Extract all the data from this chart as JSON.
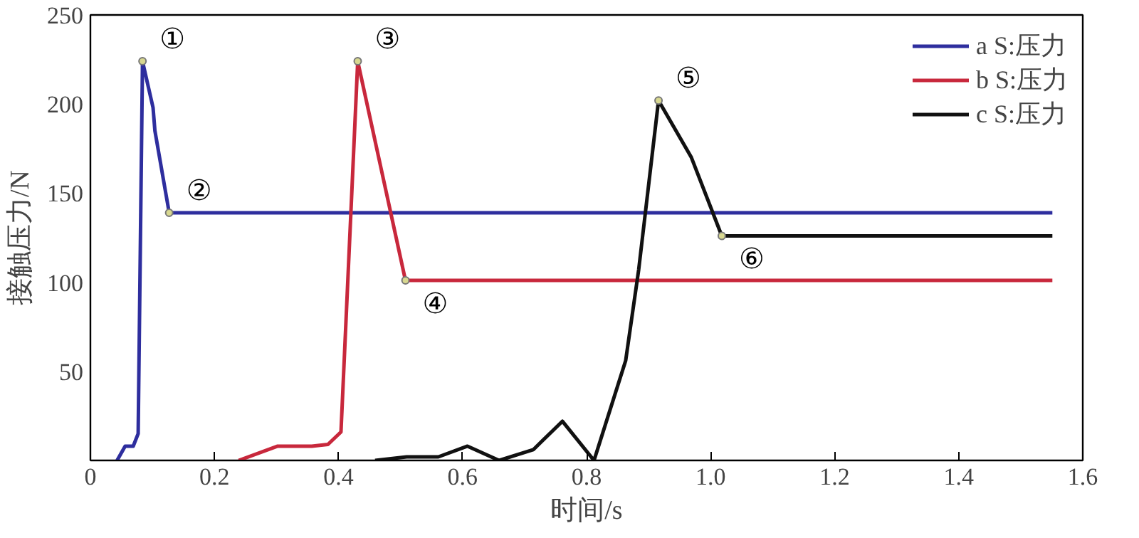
{
  "chart_data": {
    "type": "line",
    "xlabel": "时间/s",
    "ylabel": "接触压力/N",
    "xlim": [
      0,
      1.6
    ],
    "ylim": [
      0,
      250
    ],
    "xticks": [
      0,
      {
        "value": 0.2,
        "label": "0.2"
      },
      {
        "value": 0.4,
        "label": "0.4"
      },
      {
        "value": 0.6,
        "label": "0.6"
      },
      {
        "value": 0.8,
        "label": "0.8"
      },
      {
        "value": 1.0,
        "label": "1.0"
      },
      {
        "value": 1.2,
        "label": "1.2"
      },
      {
        "value": 1.4,
        "label": "1.4"
      },
      {
        "value": 1.6,
        "label": "1.6"
      }
    ],
    "yticks": [
      50,
      100,
      150,
      200,
      250
    ],
    "grid": false,
    "legend": "top right",
    "marker": "none",
    "line_style": "solid",
    "series": [
      {
        "name": "a S:压力",
        "color": "#2e2e9e",
        "x": [
          0.043,
          0.056,
          0.069,
          0.077,
          0.084,
          0.101,
          0.104,
          0.127,
          1.551
        ],
        "values": [
          0,
          8,
          8,
          15,
          224,
          198,
          185,
          139,
          139
        ]
      },
      {
        "name": "b S:压力",
        "color": "#c8283c",
        "x": [
          0.239,
          0.302,
          0.357,
          0.383,
          0.404,
          0.431,
          0.508,
          1.551
        ],
        "values": [
          0,
          8,
          8,
          9,
          16,
          224,
          101,
          101
        ]
      },
      {
        "name": "c S:压力",
        "color": "#111111",
        "x": [
          0.459,
          0.51,
          0.561,
          0.608,
          0.659,
          0.714,
          0.761,
          0.812,
          0.863,
          0.884,
          0.916,
          0.969,
          1.018,
          1.551
        ],
        "values": [
          0,
          2,
          2,
          8,
          0,
          6,
          22,
          0,
          56,
          107,
          202,
          170,
          126,
          126
        ]
      }
    ],
    "annotations": [
      {
        "text": "①",
        "x": 0.084,
        "y": 224
      },
      {
        "text": "②",
        "x": 0.127,
        "y": 139
      },
      {
        "text": "③",
        "x": 0.431,
        "y": 224
      },
      {
        "text": "④",
        "x": 0.508,
        "y": 101
      },
      {
        "text": "⑤",
        "x": 0.916,
        "y": 202
      },
      {
        "text": "⑥",
        "x": 1.018,
        "y": 126
      }
    ]
  }
}
